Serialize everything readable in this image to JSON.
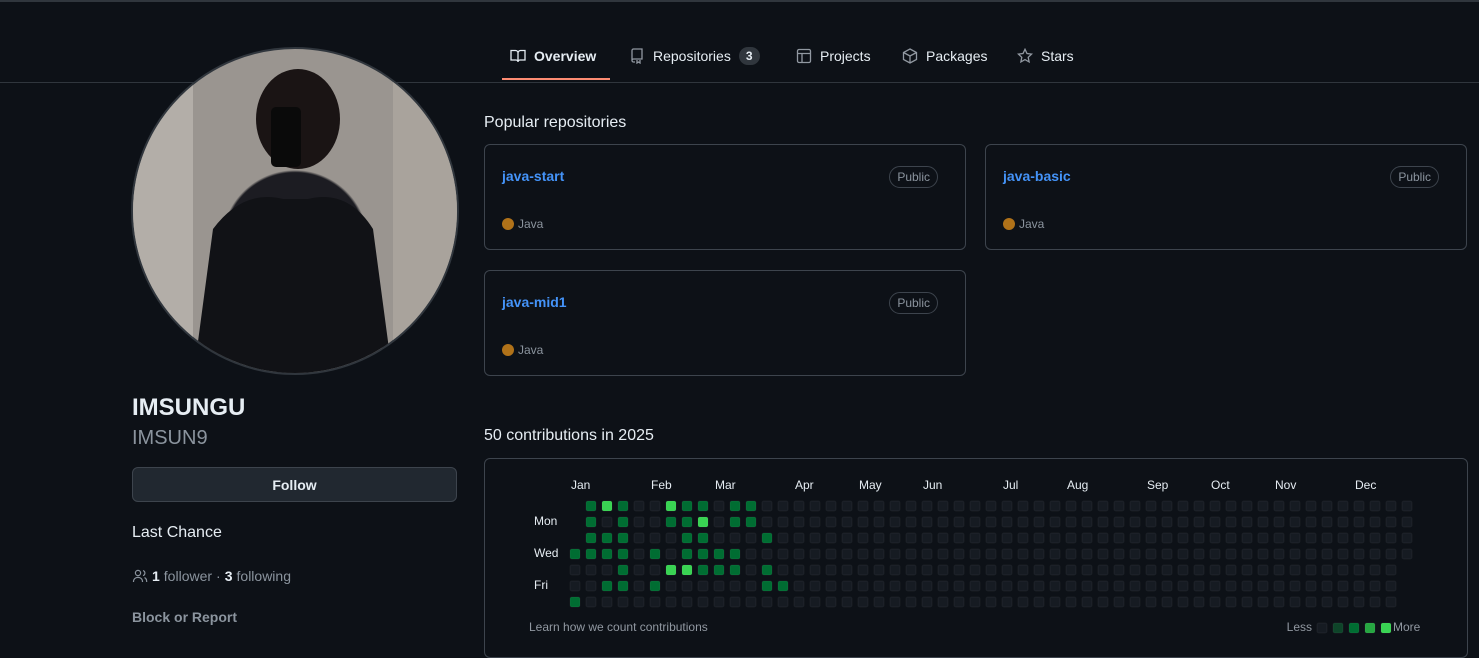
{
  "nav": {
    "tabs": [
      {
        "label": "Overview"
      },
      {
        "label": "Repositories",
        "count": 3
      },
      {
        "label": "Projects"
      },
      {
        "label": "Packages"
      },
      {
        "label": "Stars"
      }
    ]
  },
  "profile": {
    "name": "IMSUNGU",
    "login": "IMSUN9",
    "follow_button": "Follow",
    "bio": "Last Chance",
    "followers": 1,
    "followers_label": "follower",
    "separator": "·",
    "following": 3,
    "following_label": "following",
    "block_link": "Block or Report"
  },
  "popular": {
    "title": "Popular repositories",
    "repos": [
      {
        "name": "java-start",
        "visibility": "Public",
        "language": "Java",
        "language_color": "#b07219"
      },
      {
        "name": "java-basic",
        "visibility": "Public",
        "language": "Java",
        "language_color": "#b07219"
      },
      {
        "name": "java-mid1",
        "visibility": "Public",
        "language": "Java",
        "language_color": "#b07219"
      }
    ]
  },
  "contributions": {
    "title": "50 contributions in 2025",
    "months": [
      "Jan",
      "Feb",
      "Mar",
      "Apr",
      "May",
      "Jun",
      "Jul",
      "Aug",
      "Sep",
      "Oct",
      "Nov",
      "Dec"
    ],
    "days": [
      "Mon",
      "Wed",
      "Fri"
    ],
    "level_colors": [
      "#161b22",
      "#0e4429",
      "#006d32",
      "#26a641",
      "#39d353"
    ],
    "levels": [
      [
        null,
        2,
        4,
        2,
        0,
        0,
        4,
        2,
        2,
        0,
        2,
        2,
        0,
        0,
        0,
        0,
        0,
        0,
        0,
        0,
        0,
        0,
        0,
        0,
        0,
        0,
        0,
        0,
        0,
        0,
        0,
        0,
        0,
        0,
        0,
        0,
        0,
        0,
        0,
        0,
        0,
        0,
        0,
        0,
        0,
        0,
        0,
        0,
        0,
        0,
        0,
        0,
        0
      ],
      [
        null,
        2,
        0,
        2,
        0,
        0,
        2,
        2,
        4,
        0,
        2,
        2,
        0,
        0,
        0,
        0,
        0,
        0,
        0,
        0,
        0,
        0,
        0,
        0,
        0,
        0,
        0,
        0,
        0,
        0,
        0,
        0,
        0,
        0,
        0,
        0,
        0,
        0,
        0,
        0,
        0,
        0,
        0,
        0,
        0,
        0,
        0,
        0,
        0,
        0,
        0,
        0,
        0
      ],
      [
        null,
        2,
        2,
        2,
        0,
        0,
        0,
        2,
        2,
        0,
        0,
        0,
        2,
        0,
        0,
        0,
        0,
        0,
        0,
        0,
        0,
        0,
        0,
        0,
        0,
        0,
        0,
        0,
        0,
        0,
        0,
        0,
        0,
        0,
        0,
        0,
        0,
        0,
        0,
        0,
        0,
        0,
        0,
        0,
        0,
        0,
        0,
        0,
        0,
        0,
        0,
        0,
        0
      ],
      [
        2,
        2,
        2,
        2,
        0,
        2,
        0,
        2,
        2,
        2,
        2,
        0,
        0,
        0,
        0,
        0,
        0,
        0,
        0,
        0,
        0,
        0,
        0,
        0,
        0,
        0,
        0,
        0,
        0,
        0,
        0,
        0,
        0,
        0,
        0,
        0,
        0,
        0,
        0,
        0,
        0,
        0,
        0,
        0,
        0,
        0,
        0,
        0,
        0,
        0,
        0,
        0,
        0
      ],
      [
        0,
        0,
        0,
        2,
        0,
        0,
        4,
        4,
        2,
        2,
        2,
        0,
        2,
        0,
        0,
        0,
        0,
        0,
        0,
        0,
        0,
        0,
        0,
        0,
        0,
        0,
        0,
        0,
        0,
        0,
        0,
        0,
        0,
        0,
        0,
        0,
        0,
        0,
        0,
        0,
        0,
        0,
        0,
        0,
        0,
        0,
        0,
        0,
        0,
        0,
        0,
        0,
        null
      ],
      [
        0,
        0,
        2,
        2,
        0,
        2,
        0,
        0,
        0,
        0,
        0,
        0,
        2,
        2,
        0,
        0,
        0,
        0,
        0,
        0,
        0,
        0,
        0,
        0,
        0,
        0,
        0,
        0,
        0,
        0,
        0,
        0,
        0,
        0,
        0,
        0,
        0,
        0,
        0,
        0,
        0,
        0,
        0,
        0,
        0,
        0,
        0,
        0,
        0,
        0,
        0,
        0,
        null
      ],
      [
        2,
        0,
        0,
        0,
        0,
        0,
        0,
        0,
        0,
        0,
        0,
        0,
        0,
        0,
        0,
        0,
        0,
        0,
        0,
        0,
        0,
        0,
        0,
        0,
        0,
        0,
        0,
        0,
        0,
        0,
        0,
        0,
        0,
        0,
        0,
        0,
        0,
        0,
        0,
        0,
        0,
        0,
        0,
        0,
        0,
        0,
        0,
        0,
        0,
        0,
        0,
        0,
        null
      ]
    ],
    "footer": "Learn how we count contributions",
    "less": "Less",
    "more": "More"
  }
}
